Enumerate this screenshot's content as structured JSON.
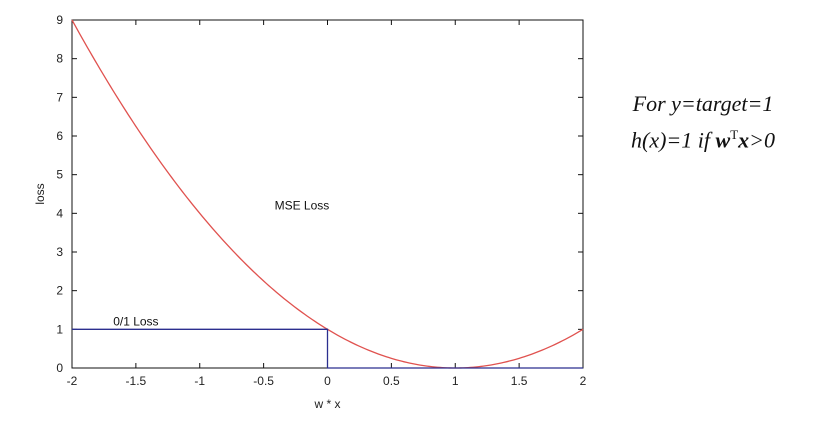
{
  "chart_data": {
    "type": "line",
    "title": "",
    "xlabel": "w * x",
    "ylabel": "loss",
    "xlim": [
      -2,
      2
    ],
    "ylim": [
      0,
      9
    ],
    "xticks": [
      -2,
      -1.5,
      -1,
      -0.5,
      0,
      0.5,
      1,
      1.5,
      2
    ],
    "xtick_labels": [
      "-2",
      "-1.5",
      "-1",
      "-0.5",
      "0",
      "0.5",
      "1",
      "1.5",
      "2"
    ],
    "yticks": [
      0,
      1,
      2,
      3,
      4,
      5,
      6,
      7,
      8,
      9
    ],
    "ytick_labels": [
      "0",
      "1",
      "2",
      "3",
      "4",
      "5",
      "6",
      "7",
      "8",
      "9"
    ],
    "grid": false,
    "series": [
      {
        "name": "MSE Loss",
        "color": "#e0524f",
        "x": [
          -2,
          -1.5,
          -1,
          -0.5,
          0,
          0.5,
          1,
          1.5,
          2
        ],
        "values": [
          9,
          6.25,
          4,
          2.25,
          1,
          0.25,
          0,
          0.25,
          1
        ]
      },
      {
        "name": "0/1 Loss",
        "color": "#2b2f8f",
        "x": [
          -2,
          0,
          0,
          2
        ],
        "values": [
          1,
          1,
          0,
          0
        ]
      }
    ],
    "annotations": [
      {
        "text": "MSE Loss",
        "x": -0.2,
        "y": 4.1
      },
      {
        "text": "0/1 Loss",
        "x": -1.5,
        "y": 1.1
      }
    ]
  },
  "side_note": {
    "line1": "For y=target=1",
    "line2_prefix": "h(x)=1 if ",
    "w": "w",
    "sup": "T",
    "x": "x",
    "line2_suffix": ">0"
  }
}
